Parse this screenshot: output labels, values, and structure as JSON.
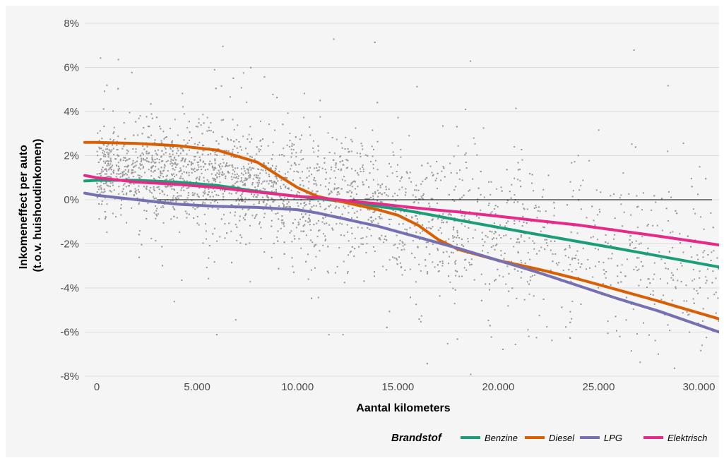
{
  "chart_data": {
    "type": "scatter",
    "title": "",
    "xlabel": "Aantal kilometers",
    "ylabel": "Inkomeneffect per auto\n(t.o.v. huishoudinkomen)",
    "ylabel_lines": [
      "Inkomeneffect per auto",
      "(t.o.v. huishoudinkomen)"
    ],
    "xlim": [
      -600,
      31000
    ],
    "ylim": [
      -8,
      8
    ],
    "x_ticks": [
      0,
      5000,
      10000,
      15000,
      20000,
      25000,
      30000
    ],
    "x_tick_labels": [
      "0",
      "5.000",
      "10.000",
      "15.000",
      "20.000",
      "25.000",
      "30.000"
    ],
    "y_ticks": [
      -8,
      -6,
      -4,
      -2,
      0,
      2,
      4,
      6,
      8
    ],
    "y_tick_labels": [
      "-8%",
      "-6%",
      "-4%",
      "-2%",
      "0%",
      "2%",
      "4%",
      "6%",
      "8%"
    ],
    "grid": "horizontal",
    "reference_line": 0,
    "scatter_color": "#999999",
    "legend": {
      "title": "Brandstof",
      "position": "bottom-right"
    },
    "x": [
      -600,
      0,
      2000,
      4000,
      6000,
      8000,
      10000,
      11000,
      12000,
      13000,
      14000,
      15000,
      16000,
      17000,
      18000,
      20000,
      22000,
      24000,
      26000,
      28000,
      31000
    ],
    "series": [
      {
        "name": "Benzine",
        "color": "#1b9e77",
        "values": [
          0.85,
          0.88,
          0.88,
          0.8,
          0.65,
          0.38,
          0.15,
          0.05,
          -0.05,
          -0.15,
          -0.3,
          -0.42,
          -0.58,
          -0.75,
          -0.92,
          -1.25,
          -1.58,
          -1.9,
          -2.22,
          -2.55,
          -3.05
        ]
      },
      {
        "name": "Diesel",
        "color": "#d95f02",
        "values": [
          2.6,
          2.6,
          2.55,
          2.45,
          2.25,
          1.7,
          0.55,
          0.15,
          -0.05,
          -0.25,
          -0.45,
          -0.7,
          -1.15,
          -1.8,
          -2.25,
          -2.75,
          -3.15,
          -3.6,
          -4.1,
          -4.6,
          -5.4
        ]
      },
      {
        "name": "LPG",
        "color": "#7570b3",
        "values": [
          0.3,
          0.2,
          0.0,
          -0.2,
          -0.3,
          -0.35,
          -0.45,
          -0.6,
          -0.8,
          -1.0,
          -1.2,
          -1.45,
          -1.7,
          -1.95,
          -2.2,
          -2.75,
          -3.3,
          -3.9,
          -4.5,
          -5.05,
          -6.0
        ]
      },
      {
        "name": "Elektrisch",
        "color": "#e7298a",
        "values": [
          1.1,
          1.0,
          0.8,
          0.7,
          0.55,
          0.35,
          0.15,
          0.1,
          0.0,
          -0.1,
          -0.18,
          -0.28,
          -0.38,
          -0.47,
          -0.55,
          -0.75,
          -0.95,
          -1.15,
          -1.4,
          -1.65,
          -2.05
        ]
      }
    ]
  }
}
